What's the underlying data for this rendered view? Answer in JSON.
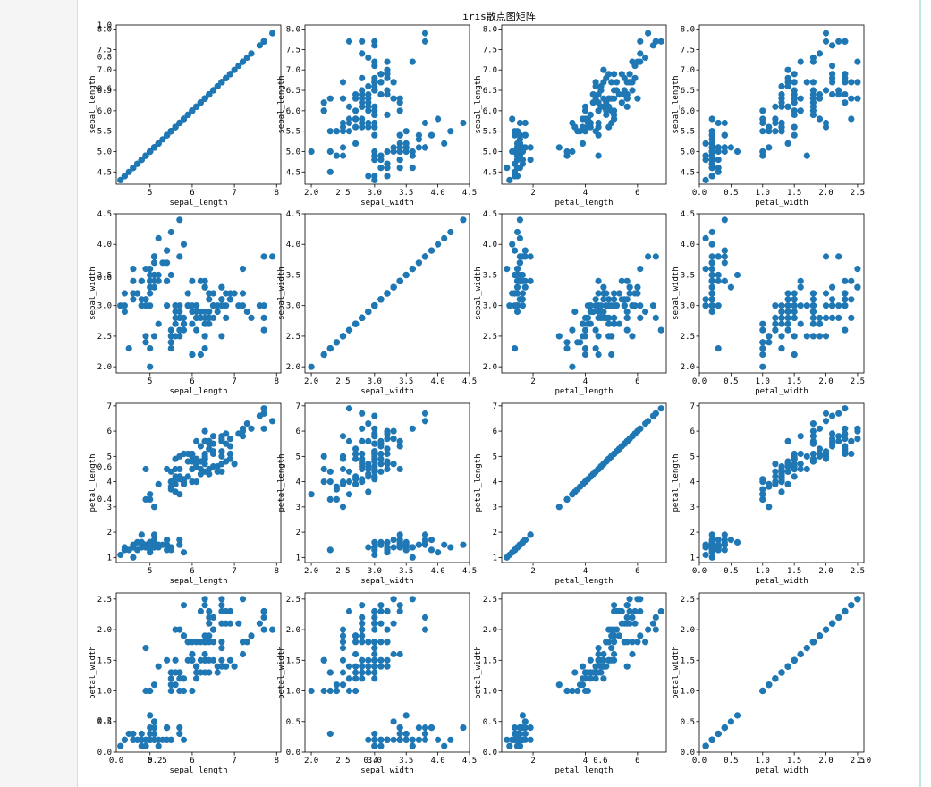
{
  "title": "iris散点图矩阵",
  "marker_color": "#1f77b4",
  "variables": [
    "sepal_length",
    "sepal_width",
    "petal_length",
    "petal_width"
  ],
  "chart_data": {
    "type": "scatter",
    "title": "iris散点图矩阵",
    "layout": "4x4 scatter matrix, row variable on y, column variable on x",
    "grid": false,
    "axes": {
      "sepal_length": {
        "lim": [
          4.2,
          8.1
        ],
        "ticks": [
          5,
          6,
          7,
          8
        ],
        "y_ticks": [
          4.5,
          5.0,
          5.5,
          6.0,
          6.5,
          7.0,
          7.5,
          8.0
        ]
      },
      "sepal_width": {
        "lim": [
          1.9,
          4.5
        ],
        "ticks": [
          2.0,
          2.5,
          3.0,
          3.5,
          4.0,
          4.5
        ],
        "y_ticks": [
          2.0,
          2.5,
          3.0,
          3.5,
          4.0,
          4.5
        ]
      },
      "petal_length": {
        "lim": [
          0.8,
          7.1
        ],
        "ticks": [
          2,
          4,
          6
        ],
        "y_ticks": [
          1,
          2,
          3,
          4,
          5,
          6,
          7
        ]
      },
      "petal_width": {
        "lim": [
          0.0,
          2.6
        ],
        "ticks": [
          0.0,
          0.5,
          1.0,
          1.5,
          2.0,
          2.5
        ],
        "y_ticks": [
          0.0,
          0.5,
          1.0,
          1.5,
          2.0,
          2.5
        ]
      }
    },
    "overlap_tick_labels": [
      {
        "row": 0,
        "column": 0,
        "axis": "y",
        "labels": [
          "1.0",
          "0.8"
        ],
        "values": [
          1.0,
          0.8
        ],
        "lim": [
          0,
          1
        ]
      },
      {
        "row": 0,
        "column": 0,
        "axis": "y",
        "labels": [
          "0.6"
        ],
        "values": [
          0.6
        ],
        "lim": [
          0,
          1
        ]
      },
      {
        "row": 1,
        "column": 0,
        "axis": "y",
        "labels": [
          "0.6"
        ],
        "values": [
          0.6
        ],
        "lim": [
          0,
          1
        ]
      },
      {
        "row": 2,
        "column": 0,
        "axis": "y",
        "labels": [
          "0.6",
          "0.4"
        ],
        "values": [
          0.6,
          0.4
        ],
        "lim": [
          0,
          1
        ]
      },
      {
        "row": 3,
        "column": 0,
        "axis": "y",
        "labels": [
          "0.2"
        ],
        "values": [
          0.2
        ],
        "lim": [
          0,
          1
        ]
      },
      {
        "row": 3,
        "column": 0,
        "axis": "x",
        "labels": [
          "0.0",
          "0.25"
        ],
        "values": [
          0.0,
          0.25
        ],
        "lim": [
          0,
          1
        ]
      },
      {
        "row": 3,
        "column": 1,
        "axis": "x",
        "labels": [
          "0.4"
        ],
        "values": [
          0.4
        ],
        "lim": [
          0,
          1
        ]
      },
      {
        "row": 3,
        "column": 2,
        "axis": "x",
        "labels": [
          "0.6"
        ],
        "values": [
          0.6
        ],
        "lim": [
          0,
          1
        ]
      },
      {
        "row": 3,
        "column": 3,
        "axis": "x",
        "labels": [
          "1.0"
        ],
        "values": [
          1.0
        ],
        "lim": [
          0,
          1
        ]
      }
    ],
    "series": [
      {
        "species_group": 1,
        "points": [
          [
            5.1,
            3.5,
            1.4,
            0.2
          ],
          [
            4.9,
            3.0,
            1.4,
            0.2
          ],
          [
            4.7,
            3.2,
            1.3,
            0.2
          ],
          [
            4.6,
            3.1,
            1.5,
            0.2
          ],
          [
            5.0,
            3.6,
            1.4,
            0.2
          ],
          [
            5.4,
            3.9,
            1.7,
            0.4
          ],
          [
            4.6,
            3.4,
            1.4,
            0.3
          ],
          [
            5.0,
            3.4,
            1.5,
            0.2
          ],
          [
            4.4,
            2.9,
            1.4,
            0.2
          ],
          [
            4.9,
            3.1,
            1.5,
            0.1
          ],
          [
            5.4,
            3.7,
            1.5,
            0.2
          ],
          [
            4.8,
            3.4,
            1.6,
            0.2
          ],
          [
            4.8,
            3.0,
            1.4,
            0.1
          ],
          [
            4.3,
            3.0,
            1.1,
            0.1
          ],
          [
            5.8,
            4.0,
            1.2,
            0.2
          ],
          [
            5.7,
            4.4,
            1.5,
            0.4
          ],
          [
            5.4,
            3.9,
            1.3,
            0.4
          ],
          [
            5.1,
            3.5,
            1.4,
            0.3
          ],
          [
            5.7,
            3.8,
            1.7,
            0.3
          ],
          [
            5.1,
            3.8,
            1.5,
            0.3
          ],
          [
            5.4,
            3.4,
            1.7,
            0.2
          ],
          [
            5.1,
            3.7,
            1.5,
            0.4
          ],
          [
            4.6,
            3.6,
            1.0,
            0.2
          ],
          [
            5.1,
            3.3,
            1.7,
            0.5
          ],
          [
            4.8,
            3.4,
            1.9,
            0.2
          ],
          [
            5.0,
            3.0,
            1.6,
            0.2
          ],
          [
            5.0,
            3.4,
            1.6,
            0.4
          ],
          [
            5.2,
            3.5,
            1.5,
            0.2
          ],
          [
            5.2,
            3.4,
            1.4,
            0.2
          ],
          [
            4.7,
            3.2,
            1.6,
            0.2
          ],
          [
            4.8,
            3.1,
            1.6,
            0.2
          ],
          [
            5.4,
            3.4,
            1.5,
            0.4
          ],
          [
            5.2,
            4.1,
            1.5,
            0.1
          ],
          [
            5.5,
            4.2,
            1.4,
            0.2
          ],
          [
            4.9,
            3.1,
            1.5,
            0.2
          ],
          [
            5.0,
            3.2,
            1.2,
            0.2
          ],
          [
            5.5,
            3.5,
            1.3,
            0.2
          ],
          [
            4.9,
            3.6,
            1.4,
            0.1
          ],
          [
            4.4,
            3.0,
            1.3,
            0.2
          ],
          [
            5.1,
            3.4,
            1.5,
            0.2
          ],
          [
            5.0,
            3.5,
            1.3,
            0.3
          ],
          [
            4.5,
            2.3,
            1.3,
            0.3
          ],
          [
            4.4,
            3.2,
            1.3,
            0.2
          ],
          [
            5.0,
            3.5,
            1.6,
            0.6
          ],
          [
            5.1,
            3.8,
            1.9,
            0.4
          ],
          [
            4.8,
            3.0,
            1.4,
            0.3
          ],
          [
            5.1,
            3.8,
            1.6,
            0.2
          ],
          [
            4.6,
            3.2,
            1.4,
            0.2
          ],
          [
            5.3,
            3.7,
            1.5,
            0.2
          ],
          [
            5.0,
            3.3,
            1.4,
            0.2
          ]
        ]
      },
      {
        "species_group": 2,
        "points": [
          [
            7.0,
            3.2,
            4.7,
            1.4
          ],
          [
            6.4,
            3.2,
            4.5,
            1.5
          ],
          [
            6.9,
            3.1,
            4.9,
            1.5
          ],
          [
            5.5,
            2.3,
            4.0,
            1.3
          ],
          [
            6.5,
            2.8,
            4.6,
            1.5
          ],
          [
            5.7,
            2.8,
            4.5,
            1.3
          ],
          [
            6.3,
            3.3,
            4.7,
            1.6
          ],
          [
            4.9,
            2.4,
            3.3,
            1.0
          ],
          [
            6.6,
            2.9,
            4.6,
            1.3
          ],
          [
            5.2,
            2.7,
            3.9,
            1.4
          ],
          [
            5.0,
            2.0,
            3.5,
            1.0
          ],
          [
            5.9,
            3.0,
            4.2,
            1.5
          ],
          [
            6.0,
            2.2,
            4.0,
            1.0
          ],
          [
            6.1,
            2.9,
            4.7,
            1.4
          ],
          [
            5.6,
            2.9,
            3.6,
            1.3
          ],
          [
            6.7,
            3.1,
            4.4,
            1.4
          ],
          [
            5.6,
            3.0,
            4.5,
            1.5
          ],
          [
            5.8,
            2.7,
            4.1,
            1.0
          ],
          [
            6.2,
            2.2,
            4.5,
            1.5
          ],
          [
            5.6,
            2.5,
            3.9,
            1.1
          ],
          [
            5.9,
            3.2,
            4.8,
            1.8
          ],
          [
            6.1,
            2.8,
            4.0,
            1.3
          ],
          [
            6.3,
            2.5,
            4.9,
            1.5
          ],
          [
            6.1,
            2.8,
            4.7,
            1.2
          ],
          [
            6.4,
            2.9,
            4.3,
            1.3
          ],
          [
            6.6,
            3.0,
            4.4,
            1.4
          ],
          [
            6.8,
            2.8,
            4.8,
            1.4
          ],
          [
            6.7,
            3.0,
            5.0,
            1.7
          ],
          [
            6.0,
            2.9,
            4.5,
            1.5
          ],
          [
            5.7,
            2.6,
            3.5,
            1.0
          ],
          [
            5.5,
            2.4,
            3.8,
            1.1
          ],
          [
            5.5,
            2.4,
            3.7,
            1.0
          ],
          [
            5.8,
            2.7,
            3.9,
            1.2
          ],
          [
            6.0,
            2.7,
            5.1,
            1.6
          ],
          [
            5.4,
            3.0,
            4.5,
            1.5
          ],
          [
            6.0,
            3.4,
            4.5,
            1.6
          ],
          [
            6.7,
            3.1,
            4.7,
            1.5
          ],
          [
            6.3,
            2.3,
            4.4,
            1.3
          ],
          [
            5.6,
            3.0,
            4.1,
            1.3
          ],
          [
            5.5,
            2.5,
            4.0,
            1.3
          ],
          [
            5.5,
            2.6,
            4.4,
            1.2
          ],
          [
            6.1,
            3.0,
            4.6,
            1.4
          ],
          [
            5.8,
            2.6,
            4.0,
            1.2
          ],
          [
            5.0,
            2.3,
            3.3,
            1.0
          ],
          [
            5.6,
            2.7,
            4.2,
            1.3
          ],
          [
            5.7,
            3.0,
            4.2,
            1.2
          ],
          [
            5.7,
            2.9,
            4.2,
            1.3
          ],
          [
            6.2,
            2.9,
            4.3,
            1.3
          ],
          [
            5.1,
            2.5,
            3.0,
            1.1
          ],
          [
            5.7,
            2.8,
            4.1,
            1.3
          ]
        ]
      },
      {
        "species_group": 3,
        "points": [
          [
            6.3,
            3.3,
            6.0,
            2.5
          ],
          [
            5.8,
            2.7,
            5.1,
            1.9
          ],
          [
            7.1,
            3.0,
            5.9,
            2.1
          ],
          [
            6.3,
            2.9,
            5.6,
            1.8
          ],
          [
            6.5,
            3.0,
            5.8,
            2.2
          ],
          [
            7.6,
            3.0,
            6.6,
            2.1
          ],
          [
            4.9,
            2.5,
            4.5,
            1.7
          ],
          [
            7.3,
            2.9,
            6.3,
            1.8
          ],
          [
            6.7,
            2.5,
            5.8,
            1.8
          ],
          [
            7.2,
            3.6,
            6.1,
            2.5
          ],
          [
            6.5,
            3.2,
            5.1,
            2.0
          ],
          [
            6.4,
            2.7,
            5.3,
            1.9
          ],
          [
            6.8,
            3.0,
            5.5,
            2.1
          ],
          [
            5.7,
            2.5,
            5.0,
            2.0
          ],
          [
            5.8,
            2.8,
            5.1,
            2.4
          ],
          [
            6.4,
            3.2,
            5.3,
            2.3
          ],
          [
            6.5,
            3.0,
            5.5,
            1.8
          ],
          [
            7.7,
            3.8,
            6.7,
            2.2
          ],
          [
            7.7,
            2.6,
            6.9,
            2.3
          ],
          [
            6.0,
            2.2,
            5.0,
            1.5
          ],
          [
            6.9,
            3.2,
            5.7,
            2.3
          ],
          [
            5.6,
            2.8,
            4.9,
            2.0
          ],
          [
            7.7,
            2.8,
            6.7,
            2.0
          ],
          [
            6.3,
            2.7,
            4.9,
            1.8
          ],
          [
            6.7,
            3.3,
            5.7,
            2.1
          ],
          [
            7.2,
            3.2,
            6.0,
            1.8
          ],
          [
            6.2,
            2.8,
            4.8,
            1.8
          ],
          [
            6.1,
            3.0,
            4.9,
            1.8
          ],
          [
            6.4,
            2.8,
            5.6,
            2.1
          ],
          [
            7.2,
            3.0,
            5.8,
            1.6
          ],
          [
            7.4,
            2.8,
            6.1,
            1.9
          ],
          [
            7.9,
            3.8,
            6.4,
            2.0
          ],
          [
            6.4,
            2.8,
            5.6,
            2.2
          ],
          [
            6.3,
            2.8,
            5.1,
            1.5
          ],
          [
            6.1,
            2.6,
            5.6,
            1.4
          ],
          [
            7.7,
            3.0,
            6.1,
            2.3
          ],
          [
            6.3,
            3.4,
            5.6,
            2.4
          ],
          [
            6.4,
            3.1,
            5.5,
            1.8
          ],
          [
            6.0,
            3.0,
            4.8,
            1.8
          ],
          [
            6.9,
            3.1,
            5.4,
            2.1
          ],
          [
            6.7,
            3.1,
            5.6,
            2.4
          ],
          [
            6.9,
            3.1,
            5.1,
            2.3
          ],
          [
            5.8,
            2.7,
            5.1,
            1.9
          ],
          [
            6.8,
            3.2,
            5.9,
            2.3
          ],
          [
            6.7,
            3.3,
            5.7,
            2.5
          ],
          [
            6.7,
            3.0,
            5.2,
            2.3
          ],
          [
            6.3,
            2.5,
            5.0,
            1.9
          ],
          [
            6.5,
            3.0,
            5.2,
            2.0
          ],
          [
            6.2,
            3.4,
            5.4,
            2.3
          ],
          [
            5.9,
            3.0,
            5.1,
            1.8
          ]
        ]
      }
    ]
  }
}
